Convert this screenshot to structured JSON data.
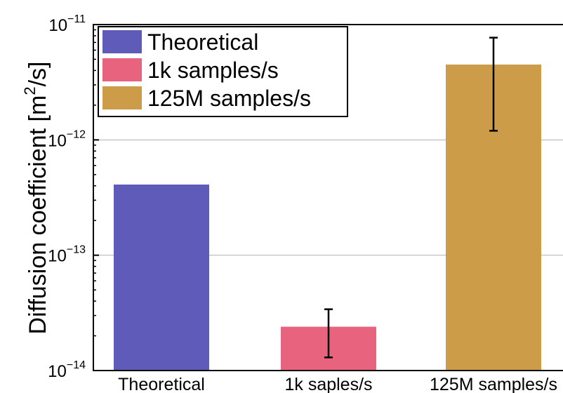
{
  "chart_data": {
    "type": "bar",
    "title": "",
    "xlabel": "",
    "ylabel": {
      "prefix": "Diffusion coefficient",
      "unit_open": "[m",
      "unit_exp": "2",
      "unit_close": "/s]"
    },
    "yscale": "log",
    "ylim": [
      1e-14,
      1e-11
    ],
    "yticks": [
      {
        "value": 1e-14,
        "base": "10",
        "exp": "−14"
      },
      {
        "value": 1e-13,
        "base": "10",
        "exp": "−13"
      },
      {
        "value": 1e-12,
        "base": "10",
        "exp": "−12"
      },
      {
        "value": 1e-11,
        "base": "10",
        "exp": "−11"
      }
    ],
    "grid": "horizontal major lines",
    "categories": [
      "Theoretical",
      "1k saples/s",
      "125M samples/s"
    ],
    "bars": [
      {
        "legend": "Theoretical",
        "value": 4.1e-13,
        "err_low": null,
        "err_high": null,
        "color": "#5f5bb8"
      },
      {
        "legend": "1k samples/s",
        "value": 2.4e-14,
        "err_low": 1.3e-14,
        "err_high": 3.4e-14,
        "color": "#e8637e"
      },
      {
        "legend": "125M samples/s",
        "value": 4.5e-12,
        "err_low": 1.2e-12,
        "err_high": 7.7e-12,
        "color": "#cc9c48"
      }
    ],
    "legend_position": "top-left"
  }
}
